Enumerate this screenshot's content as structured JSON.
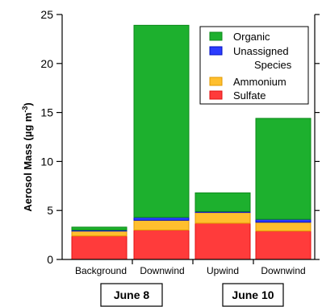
{
  "chart_data": {
    "type": "bar",
    "stacked": true,
    "ylabel": "Aerosol Mass (µg m⁻³)",
    "ylabel_main": "Aerosol Mass (µg m",
    "ylabel_sup": "-3",
    "ylabel_close": ")",
    "ylim": [
      0,
      25
    ],
    "yticks": [
      0,
      5,
      10,
      15,
      20,
      25
    ],
    "categories": [
      "Background",
      "Downwind",
      "Upwind",
      "Downwind"
    ],
    "groups": [
      {
        "label": "June 8",
        "categories": [
          0,
          1
        ]
      },
      {
        "label": "June 10",
        "categories": [
          2,
          3
        ]
      }
    ],
    "series": [
      {
        "name": "Sulfate",
        "color": "#ff3b3b",
        "edge": "#e01010",
        "values": [
          2.4,
          3.0,
          3.7,
          2.9
        ]
      },
      {
        "name": "Ammonium",
        "color": "#ffbf2e",
        "edge": "#e09a00",
        "values": [
          0.5,
          1.0,
          1.1,
          0.9
        ]
      },
      {
        "name": "Unassigned Species",
        "color": "#2b3cff",
        "edge": "#0010c0",
        "values": [
          0.1,
          0.3,
          0.1,
          0.3
        ]
      },
      {
        "name": "Organic",
        "color": "#1db02e",
        "edge": "#0c8a1a",
        "values": [
          0.3,
          19.6,
          1.9,
          10.3
        ]
      }
    ],
    "legend": {
      "placement": "top-right",
      "items": [
        {
          "lines": [
            "Organic"
          ],
          "color": "#1db02e",
          "edge": "#0c8a1a"
        },
        {
          "lines": [
            "Unassigned",
            "Species"
          ],
          "color": "#2b3cff",
          "edge": "#0010c0"
        },
        {
          "lines": [
            "Ammonium"
          ],
          "color": "#ffbf2e",
          "edge": "#e09a00"
        },
        {
          "lines": [
            "Sulfate"
          ],
          "color": "#ff3b3b",
          "edge": "#e01010"
        }
      ]
    },
    "grid": false
  }
}
